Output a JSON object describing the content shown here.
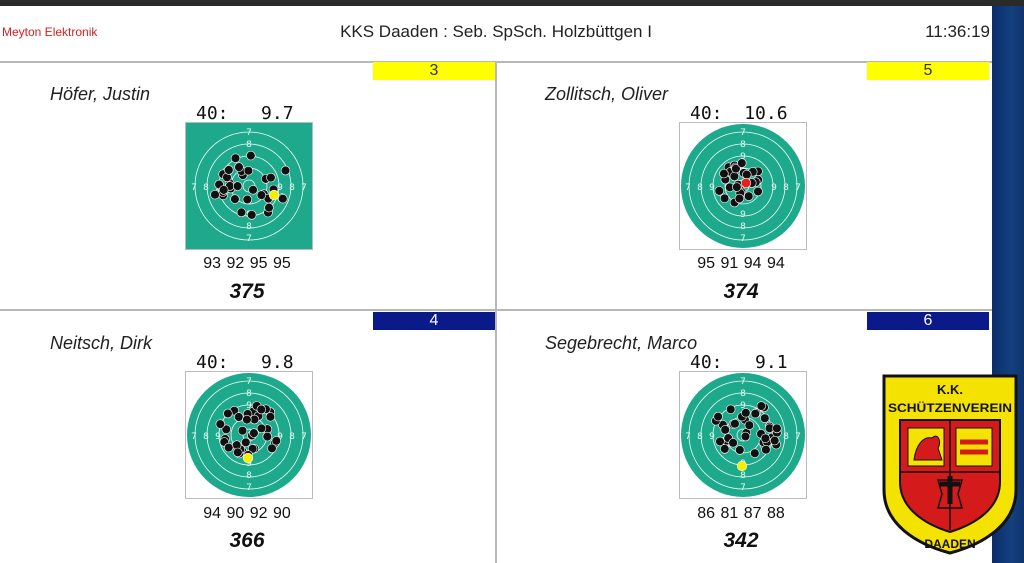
{
  "header": {
    "brand": "Meyton Elektronik",
    "title": "KKS Daaden : Seb. SpSch. Holzbüttgen I",
    "clock": "11:36:19"
  },
  "shooters": [
    {
      "lane": "3",
      "lane_color": "#ffff00",
      "name": "Höfer, Justin",
      "shot_label": "40:",
      "shot_value": "9.7",
      "series": "93 92 95 95",
      "total": "375"
    },
    {
      "lane": "5",
      "lane_color": "#ffff00",
      "name": "Zollitsch, Oliver",
      "shot_label": "40:",
      "shot_value": "10.6",
      "series": "95 91 94 94",
      "total": "374"
    },
    {
      "lane": "4",
      "lane_color": "#0a1a8a",
      "name": "Neitsch, Dirk",
      "shot_label": "40:",
      "shot_value": "9.8",
      "series": "94 90 92 90",
      "total": "366"
    },
    {
      "lane": "6",
      "lane_color": "#0a1a8a",
      "name": "Segebrecht, Marco",
      "shot_label": "40:",
      "shot_value": "9.1",
      "series": "86 81 87 88",
      "total": "342"
    }
  ],
  "logo": {
    "top_text": "K.K.",
    "main_text": "SCHÜTZENVEREIN",
    "bottom_text": "DAADEN"
  },
  "colors": {
    "target_green": "#1fa98c",
    "brand_red": "#d42020",
    "last_shot_yellow": "#f4f000",
    "last_shot_red": "#e52020"
  }
}
